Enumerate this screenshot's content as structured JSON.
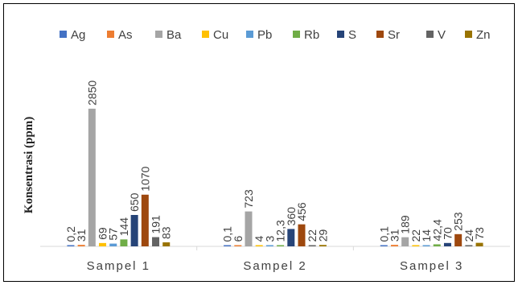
{
  "chart_data": {
    "type": "bar",
    "ylabel": "Konsentrasi (ppm)",
    "xlabel": "",
    "title": "",
    "categories": [
      "Sampel  1",
      "Sampel  2",
      "Sampel  3"
    ],
    "legend_position": "top",
    "grid": false,
    "series": [
      {
        "name": "Ag",
        "color": "#4472C4",
        "values": [
          0.2,
          0.1,
          0.1
        ],
        "labels": [
          "0,2",
          "0,1",
          "0,1"
        ]
      },
      {
        "name": "As",
        "color": "#ED7D31",
        "values": [
          31,
          6,
          31
        ],
        "labels": [
          "31",
          "6",
          "31"
        ]
      },
      {
        "name": "Ba",
        "color": "#A5A5A5",
        "values": [
          2850,
          723,
          189
        ],
        "labels": [
          "2850",
          "723",
          "189"
        ]
      },
      {
        "name": "Cu",
        "color": "#FFC000",
        "values": [
          69,
          4,
          22
        ],
        "labels": [
          "69",
          "4",
          "22"
        ]
      },
      {
        "name": "Pb",
        "color": "#5B9BD5",
        "values": [
          57,
          3,
          14
        ],
        "labels": [
          "57",
          "3",
          "14"
        ]
      },
      {
        "name": "Rb",
        "color": "#70AD47",
        "values": [
          144,
          12.3,
          42.4
        ],
        "labels": [
          "144",
          "12,3",
          "42,4"
        ]
      },
      {
        "name": "S",
        "color": "#264478",
        "values": [
          650,
          360,
          70
        ],
        "labels": [
          "650",
          "360",
          "70"
        ]
      },
      {
        "name": "Sr",
        "color": "#9E480E",
        "values": [
          1070,
          456,
          253
        ],
        "labels": [
          "1070",
          "456",
          "253"
        ]
      },
      {
        "name": "V",
        "color": "#636363",
        "values": [
          191,
          22,
          24
        ],
        "labels": [
          "191",
          "22",
          "24"
        ]
      },
      {
        "name": "Zn",
        "color": "#997300",
        "values": [
          83,
          29,
          73
        ],
        "labels": [
          "83",
          "29",
          "73"
        ]
      }
    ]
  }
}
